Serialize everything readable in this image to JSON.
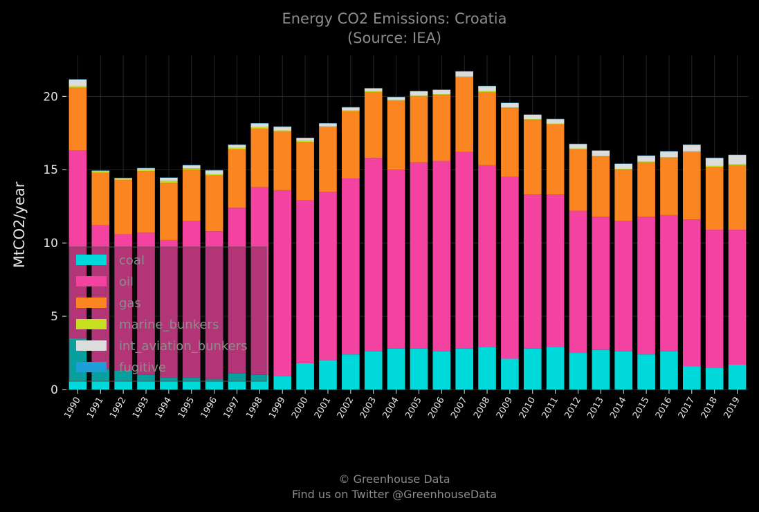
{
  "chart_data": {
    "type": "bar",
    "stacked": true,
    "title": "Energy CO2 Emissions: Croatia",
    "subtitle": "(Source: IEA)",
    "xlabel": "",
    "ylabel": "MtCO2/year",
    "ylim": [
      0,
      22.8
    ],
    "yticks": [
      0,
      5,
      10,
      15,
      20
    ],
    "grid": true,
    "legend_position": "lower-left",
    "categories": [
      "1990",
      "1991",
      "1992",
      "1993",
      "1994",
      "1995",
      "1996",
      "1997",
      "1998",
      "1999",
      "2000",
      "2001",
      "2002",
      "2003",
      "2004",
      "2005",
      "2006",
      "2007",
      "2008",
      "2009",
      "2010",
      "2011",
      "2012",
      "2013",
      "2014",
      "2015",
      "2016",
      "2017",
      "2018",
      "2019"
    ],
    "series": [
      {
        "name": "coal",
        "color": "#00d9d9",
        "values": [
          3.5,
          1.4,
          1.3,
          1.0,
          0.8,
          0.8,
          0.7,
          1.1,
          1.0,
          0.9,
          1.8,
          2.0,
          2.4,
          2.6,
          2.8,
          2.8,
          2.6,
          2.8,
          2.9,
          2.1,
          2.8,
          2.9,
          2.5,
          2.7,
          2.6,
          2.4,
          2.6,
          1.6,
          1.5,
          1.7
        ]
      },
      {
        "name": "oil",
        "color": "#f442a0",
        "values": [
          12.8,
          9.8,
          9.3,
          9.7,
          9.4,
          10.7,
          10.1,
          11.3,
          12.8,
          12.7,
          11.1,
          11.5,
          12.0,
          13.2,
          12.2,
          12.7,
          13.0,
          13.4,
          12.4,
          12.4,
          10.5,
          10.4,
          9.7,
          9.1,
          8.9,
          9.4,
          9.3,
          10.0,
          9.4,
          9.2
        ]
      },
      {
        "name": "gas",
        "color": "#fb8520",
        "values": [
          4.3,
          3.6,
          3.7,
          4.2,
          3.9,
          3.5,
          3.8,
          4.0,
          4.0,
          4.0,
          4.0,
          4.4,
          4.6,
          4.5,
          4.7,
          4.5,
          4.5,
          5.1,
          5.0,
          4.7,
          5.1,
          4.8,
          4.2,
          4.1,
          3.5,
          3.7,
          3.9,
          4.6,
          4.3,
          4.4
        ]
      },
      {
        "name": "marine_bunkers",
        "color": "#c5e01e",
        "values": [
          0.1,
          0.08,
          0.08,
          0.1,
          0.15,
          0.1,
          0.1,
          0.1,
          0.1,
          0.08,
          0.06,
          0.05,
          0.05,
          0.05,
          0.05,
          0.05,
          0.05,
          0.05,
          0.05,
          0.05,
          0.05,
          0.05,
          0.05,
          0.05,
          0.05,
          0.05,
          0.05,
          0.05,
          0.05,
          0.05
        ]
      },
      {
        "name": "int_aviation_bunkers",
        "color": "#dcdcdc",
        "values": [
          0.45,
          0.05,
          0.05,
          0.1,
          0.2,
          0.2,
          0.25,
          0.2,
          0.25,
          0.25,
          0.2,
          0.2,
          0.2,
          0.2,
          0.2,
          0.3,
          0.3,
          0.35,
          0.35,
          0.3,
          0.3,
          0.3,
          0.3,
          0.35,
          0.35,
          0.4,
          0.4,
          0.45,
          0.55,
          0.65
        ]
      },
      {
        "name": "fugitive",
        "color": "#1f9fd7",
        "values": [
          0.02,
          0.02,
          0.02,
          0.02,
          0.02,
          0.02,
          0.02,
          0.02,
          0.02,
          0.02,
          0.02,
          0.02,
          0.02,
          0.02,
          0.02,
          0.02,
          0.02,
          0.02,
          0.02,
          0.02,
          0.02,
          0.02,
          0.02,
          0.02,
          0.02,
          0.02,
          0.02,
          0.02,
          0.02,
          0.02
        ]
      }
    ]
  },
  "credits": {
    "line1": "© Greenhouse Data",
    "line2": "Find us on Twitter @GreenhouseData"
  }
}
